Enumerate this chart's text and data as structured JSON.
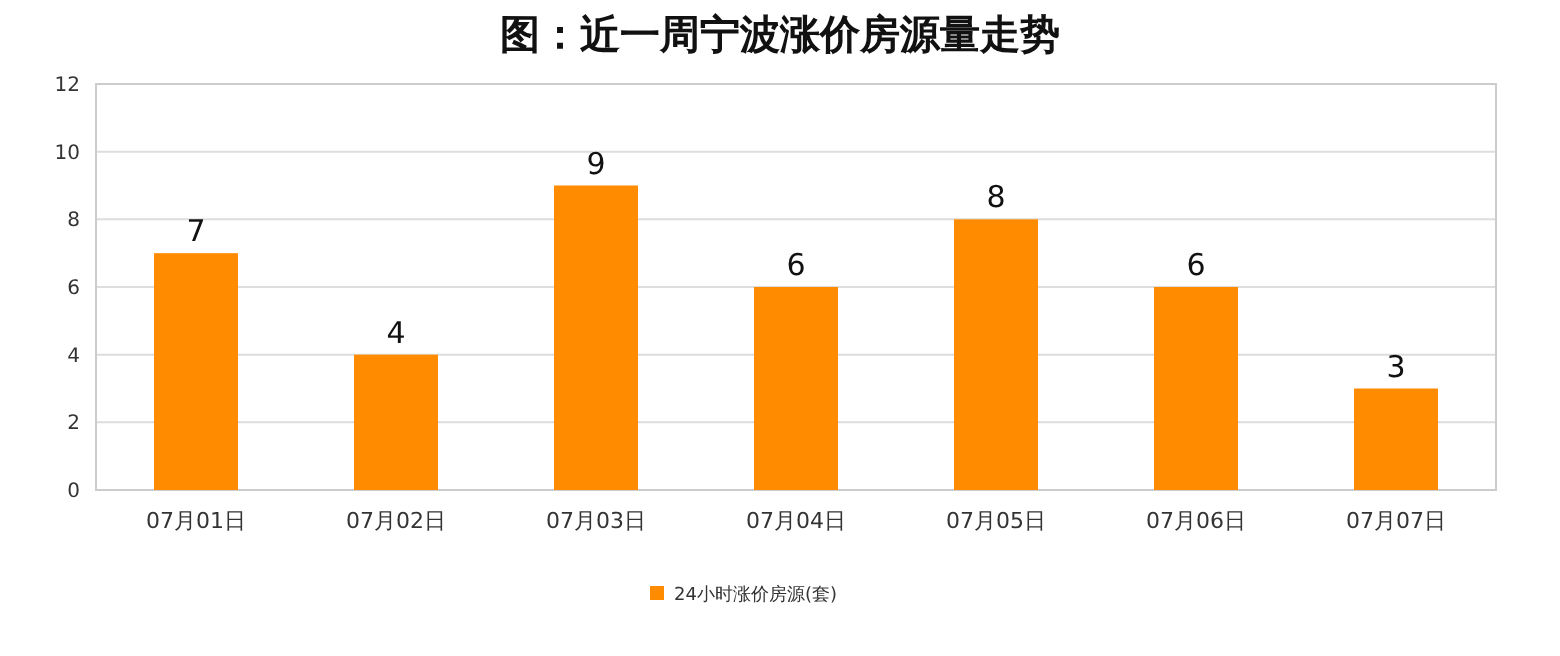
{
  "chart_data": {
    "type": "bar",
    "title": "图：近一周宁波涨价房源量走势",
    "categories": [
      "07月01日",
      "07月02日",
      "07月03日",
      "07月04日",
      "07月05日",
      "07月06日",
      "07月07日"
    ],
    "series": [
      {
        "name": "24小时涨价房源(套)",
        "color": "#ff8c00",
        "values": [
          7,
          4,
          9,
          6,
          8,
          6,
          3
        ]
      }
    ],
    "ylim": [
      0,
      12
    ],
    "yticks": [
      0,
      2,
      4,
      6,
      8,
      10,
      12
    ],
    "grid": "y",
    "legend": "bottom",
    "data_labels": true
  }
}
